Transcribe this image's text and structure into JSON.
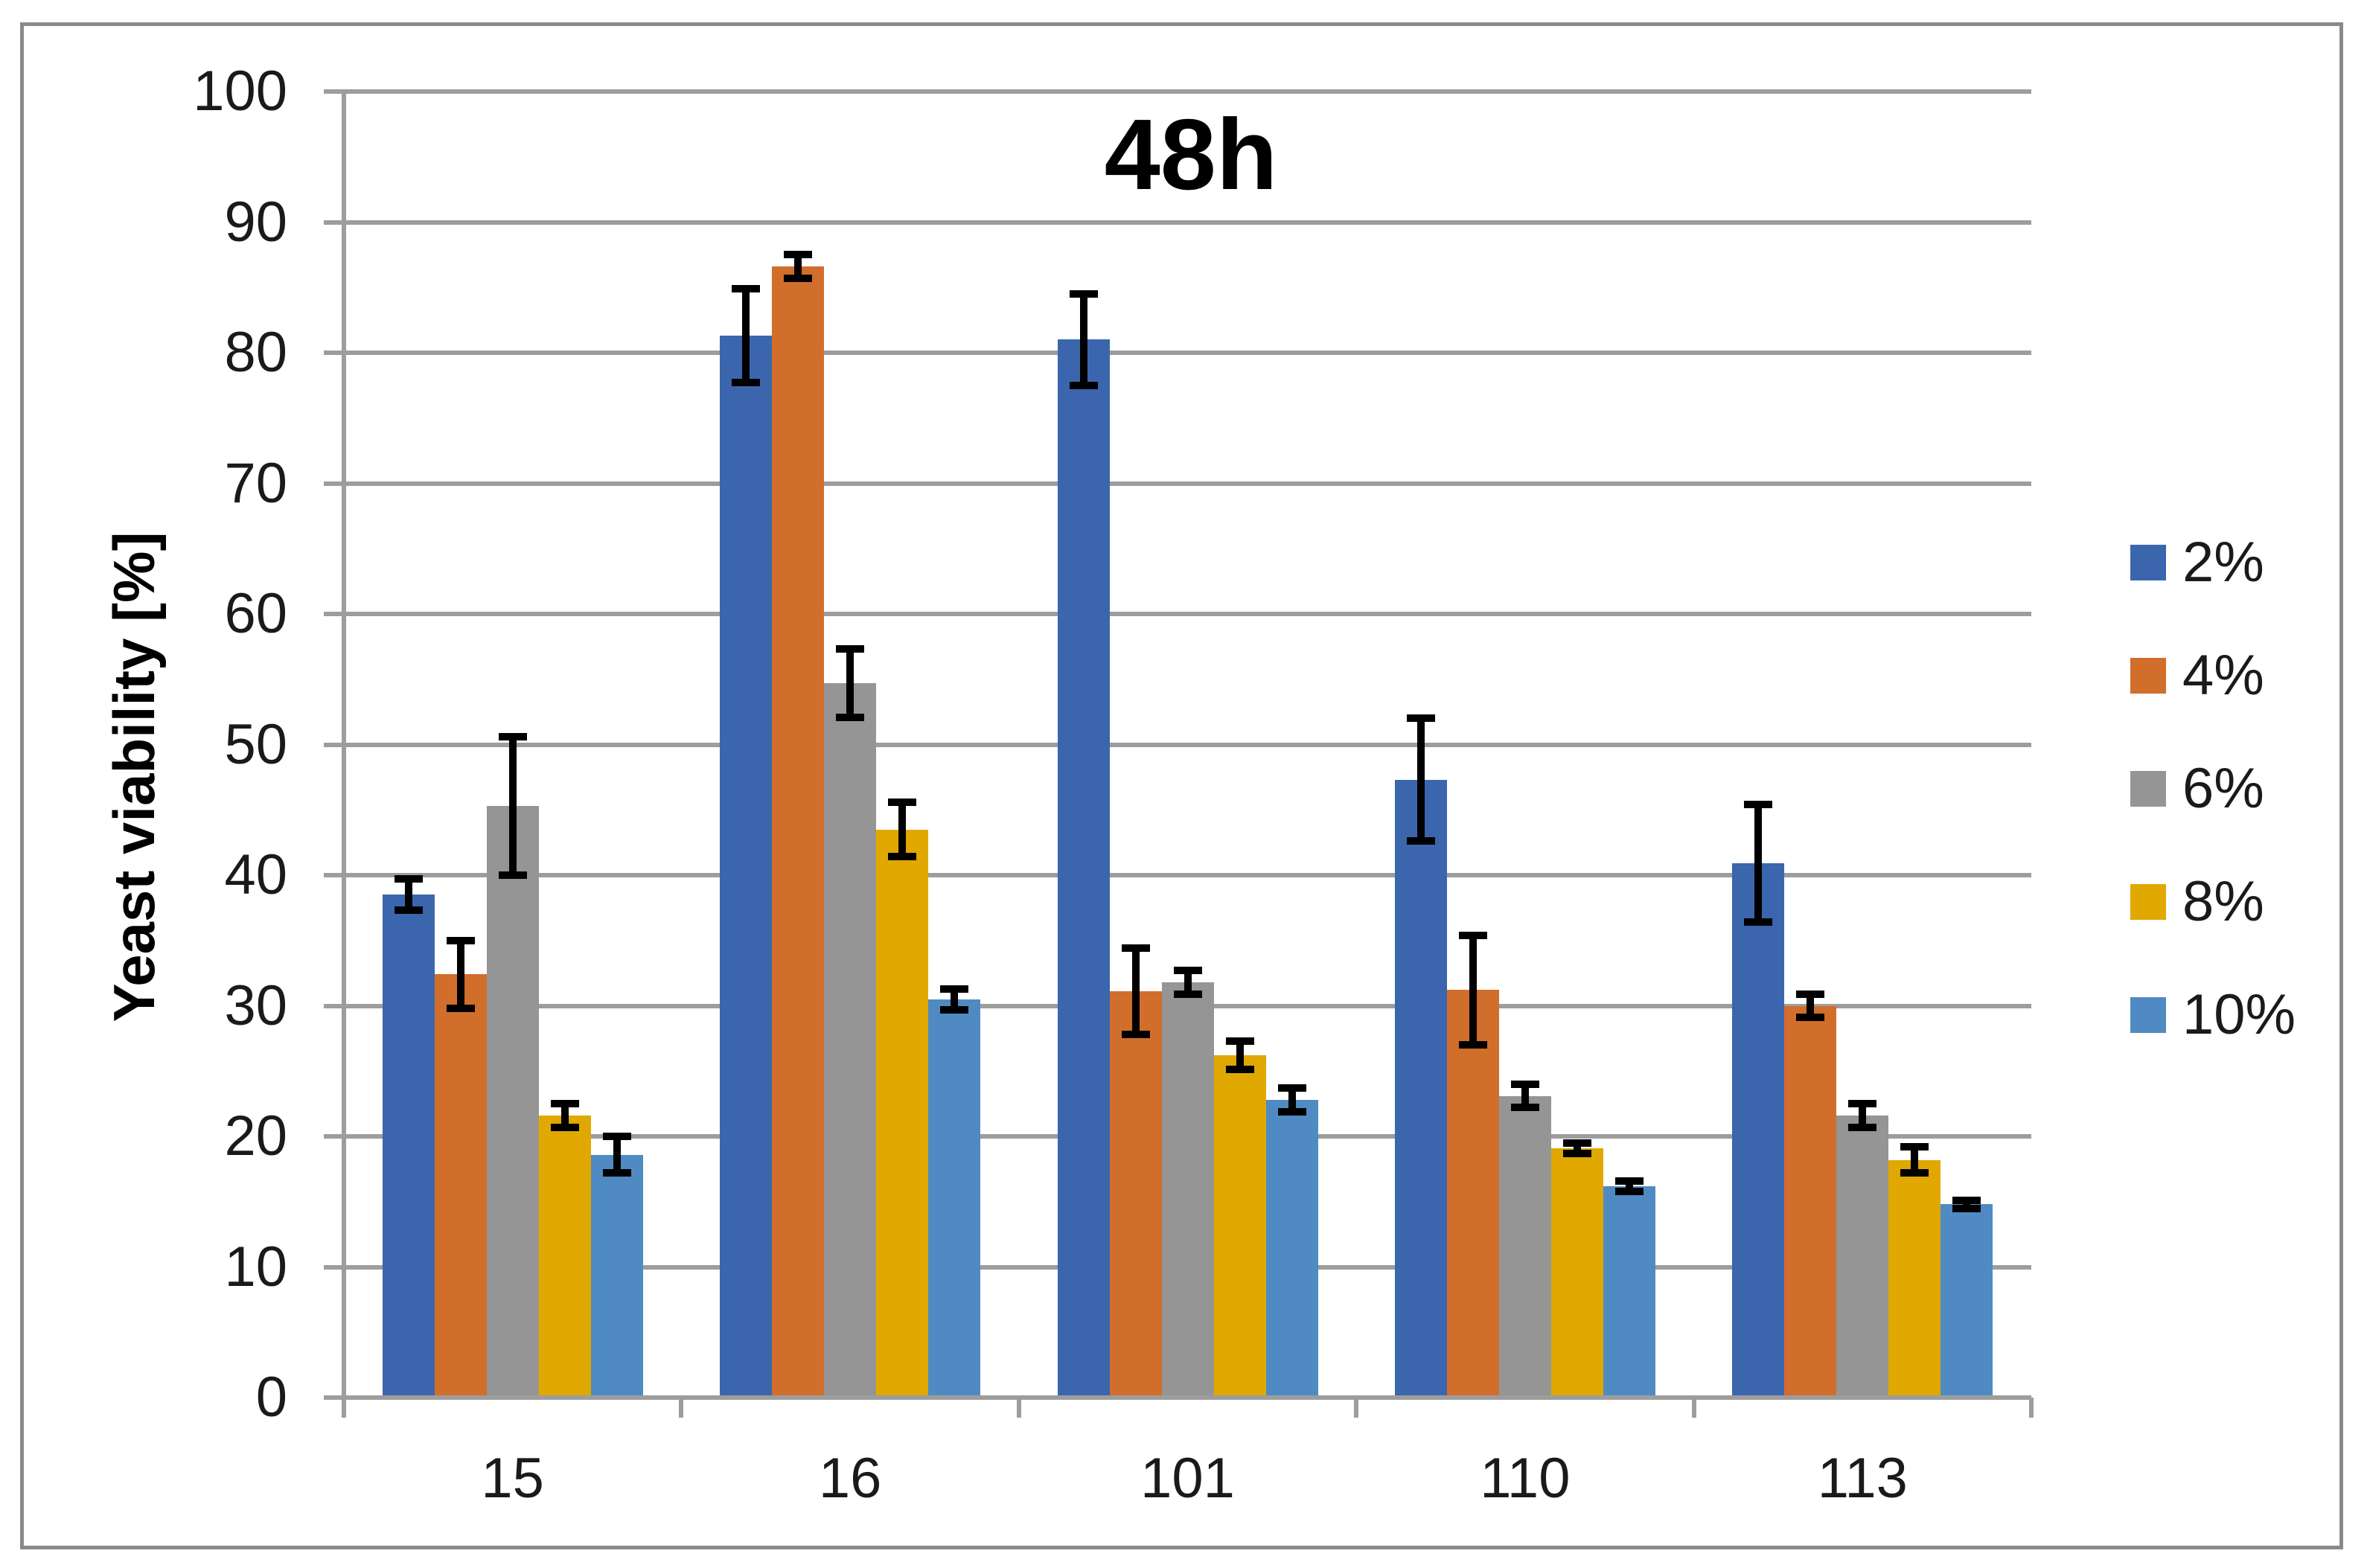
{
  "chart_data": {
    "type": "bar",
    "title": "48h",
    "ylabel": "Yeast viability [%]",
    "xlabel": "",
    "categories": [
      "15",
      "16",
      "101",
      "110",
      "113"
    ],
    "series": [
      {
        "name": "2%",
        "color": "#3B66AD",
        "values": [
          38.5,
          81.3,
          81.0,
          47.3,
          40.9
        ],
        "errors": [
          1.2,
          3.6,
          3.5,
          4.7,
          4.5
        ]
      },
      {
        "name": "4%",
        "color": "#D26E2B",
        "values": [
          32.4,
          86.6,
          31.1,
          31.2,
          30.0
        ],
        "errors": [
          2.6,
          0.9,
          3.3,
          4.2,
          0.9
        ]
      },
      {
        "name": "6%",
        "color": "#959595",
        "values": [
          45.3,
          54.7,
          31.8,
          23.1,
          21.6
        ],
        "errors": [
          5.3,
          2.6,
          0.9,
          0.9,
          0.9
        ]
      },
      {
        "name": "8%",
        "color": "#E0A800",
        "values": [
          21.6,
          43.5,
          26.2,
          19.1,
          18.2
        ],
        "errors": [
          0.9,
          2.1,
          1.1,
          0.4,
          1.0
        ]
      },
      {
        "name": "10%",
        "color": "#4F8BC2",
        "values": [
          18.6,
          30.5,
          22.8,
          16.2,
          14.8
        ],
        "errors": [
          1.4,
          0.8,
          0.9,
          0.4,
          0.3
        ]
      }
    ],
    "ylim": [
      0,
      100
    ],
    "ytick_step": 10,
    "yticks": [
      "0",
      "10",
      "20",
      "30",
      "40",
      "50",
      "60",
      "70",
      "80",
      "90",
      "100"
    ],
    "grid": true,
    "error_bars": true,
    "legend_position": "right",
    "colors": {
      "grid": "#9D9D9D",
      "axis": "#9D9D9D",
      "error_bar": "#000000",
      "text": "#1A1A1A",
      "figure_border": "#8A8A8A",
      "background": "#FFFFFF"
    }
  }
}
